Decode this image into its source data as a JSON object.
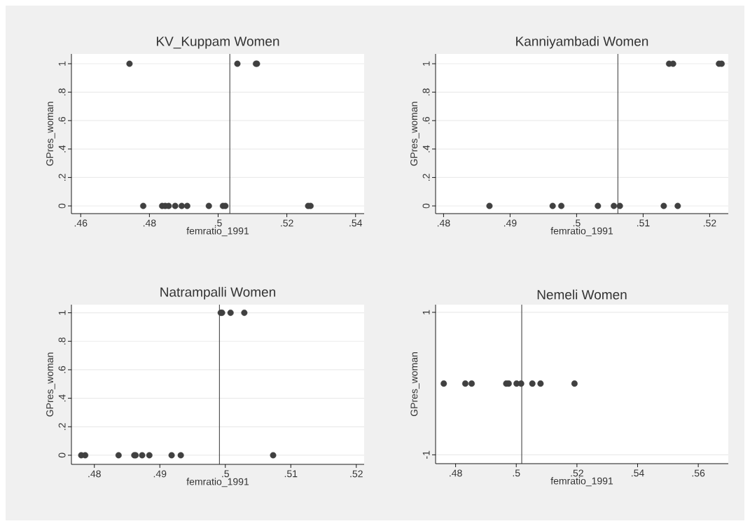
{
  "chart_data": [
    {
      "type": "scatter",
      "title": "KV_Kuppam Women",
      "xlabel": "femratio_1991",
      "ylabel": "GPres_woman",
      "color": "#404040",
      "grid": "y",
      "x": [
        0.4742,
        0.5056,
        0.511,
        0.5113,
        0.4782,
        0.4837,
        0.4846,
        0.4856,
        0.4875,
        0.4894,
        0.491,
        0.4973,
        0.5014,
        0.5021,
        0.5262,
        0.5269
      ],
      "values": [
        1,
        1,
        1,
        1,
        0,
        0,
        0,
        0,
        0,
        0,
        0,
        0,
        0,
        0,
        0,
        0
      ],
      "xlim": [
        0.4573,
        0.5425
      ],
      "xticks": [
        {
          "value": 0.46,
          "label": ".46"
        },
        {
          "value": 0.48,
          "label": ".48"
        },
        {
          "value": 0.5,
          "label": ".5"
        },
        {
          "value": 0.52,
          "label": ".52"
        },
        {
          "value": 0.54,
          "label": ".54"
        }
      ],
      "ylim": [
        -0.054,
        1.069
      ],
      "yticks": [
        0,
        {
          "value": 0.2,
          "label": ".2"
        },
        {
          "value": 0.4,
          "label": ".4"
        },
        {
          "value": 0.6,
          "label": ".6"
        },
        {
          "value": 0.8,
          "label": ".8"
        },
        1
      ],
      "ref_lines": [
        {
          "axis": "x",
          "value": 0.5034,
          "color": "#333333"
        }
      ]
    },
    {
      "type": "scatter",
      "title": "Kanniyambadi Women",
      "xlabel": "femratio_1991",
      "ylabel": "GPres_woman",
      "color": "#404040",
      "grid": "y",
      "x": [
        0.5139,
        0.5145,
        0.5214,
        0.5218,
        0.4869,
        0.4964,
        0.4977,
        0.5032,
        0.5056,
        0.5065,
        0.5131,
        0.5152
      ],
      "values": [
        1,
        1,
        1,
        1,
        0,
        0,
        0,
        0,
        0,
        0,
        0,
        0
      ],
      "xlim": [
        0.4788,
        0.5228
      ],
      "xticks": [
        {
          "value": 0.48,
          "label": ".48"
        },
        {
          "value": 0.49,
          "label": ".49"
        },
        {
          "value": 0.5,
          "label": ".5"
        },
        {
          "value": 0.51,
          "label": ".51"
        },
        {
          "value": 0.52,
          "label": ".52"
        }
      ],
      "ylim": [
        -0.054,
        1.069
      ],
      "yticks": [
        0,
        {
          "value": 0.2,
          "label": ".2"
        },
        {
          "value": 0.4,
          "label": ".4"
        },
        {
          "value": 0.6,
          "label": ".6"
        },
        {
          "value": 0.8,
          "label": ".8"
        },
        1
      ],
      "ref_lines": [
        {
          "axis": "x",
          "value": 0.5062,
          "color": "#333333"
        }
      ]
    },
    {
      "type": "scatter",
      "title": "Natrampalli Women",
      "xlabel": "femratio_1991",
      "ylabel": "GPres_woman",
      "color": "#404040",
      "grid": "y",
      "x": [
        0.4993,
        0.4995,
        0.5008,
        0.5029,
        0.478,
        0.4786,
        0.4837,
        0.4861,
        0.4863,
        0.4873,
        0.4884,
        0.4918,
        0.4932,
        0.5073
      ],
      "values": [
        1,
        1,
        1,
        1,
        0,
        0,
        0,
        0,
        0,
        0,
        0,
        0,
        0,
        0
      ],
      "xlim": [
        0.4765,
        0.5212
      ],
      "xticks": [
        {
          "value": 0.48,
          "label": ".48"
        },
        {
          "value": 0.49,
          "label": ".49"
        },
        {
          "value": 0.5,
          "label": ".5"
        },
        {
          "value": 0.51,
          "label": ".51"
        },
        {
          "value": 0.52,
          "label": ".52"
        }
      ],
      "ylim": [
        -0.064,
        1.057
      ],
      "yticks": [
        0,
        {
          "value": 0.2,
          "label": ".2"
        },
        {
          "value": 0.4,
          "label": ".4"
        },
        {
          "value": 0.6,
          "label": ".6"
        },
        {
          "value": 0.8,
          "label": ".8"
        },
        1
      ],
      "ref_lines": [
        {
          "axis": "x",
          "value": 0.4991,
          "color": "#333333"
        }
      ]
    },
    {
      "type": "scatter",
      "title": "Nemeli Women",
      "xlabel": "femratio_1991",
      "ylabel": "GPres_woman",
      "color": "#404040",
      "grid": "y",
      "x": [
        0.4761,
        0.4832,
        0.4853,
        0.4967,
        0.4975,
        0.5001,
        0.5016,
        0.5053,
        0.508,
        0.5192
      ],
      "values": [
        0,
        0,
        0,
        0,
        0,
        0,
        0,
        0,
        0,
        0
      ],
      "xlim": [
        0.4734,
        0.5699
      ],
      "xticks": [
        {
          "value": 0.48,
          "label": ".48"
        },
        {
          "value": 0.5,
          "label": ".5"
        },
        {
          "value": 0.52,
          "label": ".52"
        },
        {
          "value": 0.54,
          "label": ".54"
        },
        {
          "value": 0.56,
          "label": ".56"
        }
      ],
      "ylim": [
        -1.124,
        1.108
      ],
      "yticks": [
        -1,
        1
      ],
      "ref_lines": [
        {
          "axis": "x",
          "value": 0.5018,
          "color": "#333333"
        }
      ]
    }
  ]
}
